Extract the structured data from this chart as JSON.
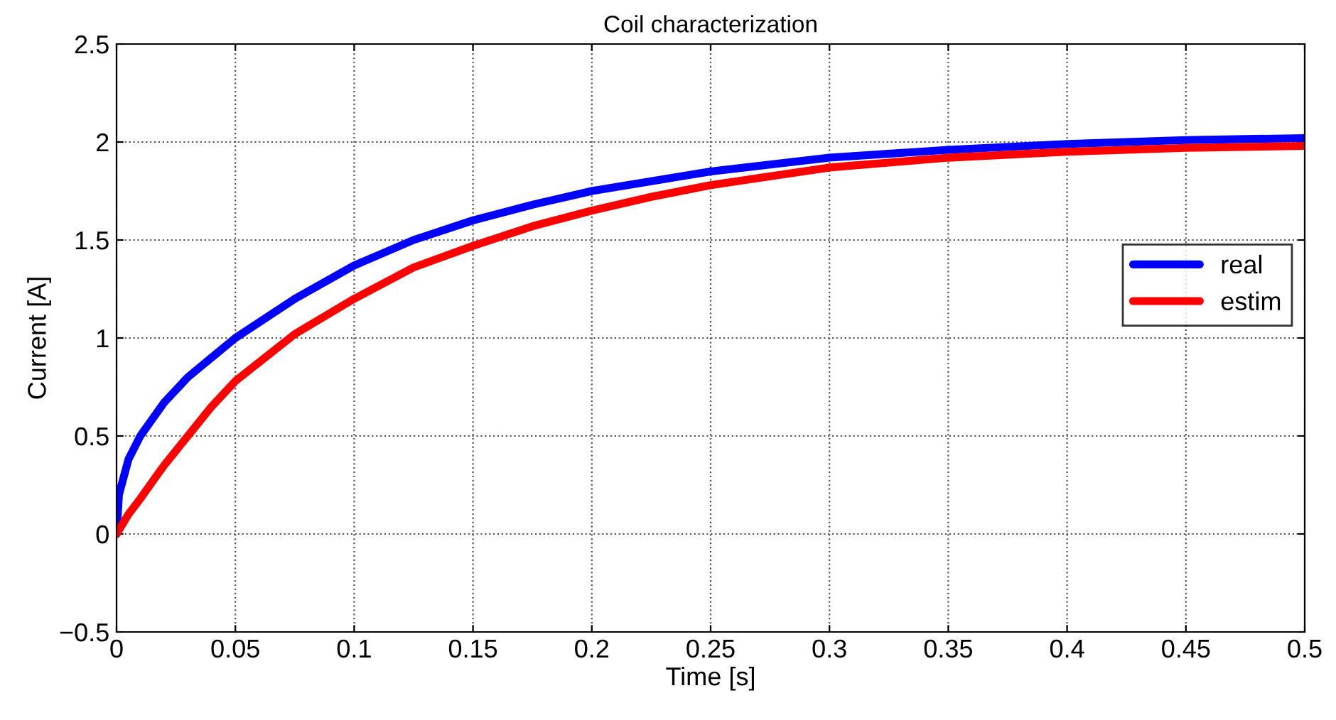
{
  "chart_data": {
    "type": "line",
    "title": "Coil characterization",
    "xlabel": "Time [s]",
    "ylabel": "Current [A]",
    "xlim": [
      0,
      0.5
    ],
    "ylim": [
      -0.5,
      2.5
    ],
    "xticks": [
      0,
      0.05,
      0.1,
      0.15,
      0.2,
      0.25,
      0.3,
      0.35,
      0.4,
      0.45,
      0.5
    ],
    "yticks": [
      {
        "value": -0.5,
        "label": "−0.5"
      },
      0,
      0.5,
      1,
      1.5,
      2,
      2.5
    ],
    "grid": true,
    "legend": "right",
    "line_style": "solid",
    "marker": "none",
    "series": [
      {
        "name": "real",
        "color": "#0000ff",
        "x": [
          0,
          0.001,
          0.005,
          0.01,
          0.02,
          0.03,
          0.04,
          0.05,
          0.075,
          0.1,
          0.125,
          0.15,
          0.175,
          0.2,
          0.225,
          0.25,
          0.3,
          0.35,
          0.4,
          0.45,
          0.5
        ],
        "values": [
          0,
          0.2,
          0.38,
          0.5,
          0.67,
          0.8,
          0.9,
          1.0,
          1.2,
          1.37,
          1.5,
          1.6,
          1.68,
          1.75,
          1.8,
          1.85,
          1.92,
          1.96,
          1.99,
          2.01,
          2.02
        ]
      },
      {
        "name": "estim",
        "color": "#ff0000",
        "x": [
          0,
          0.005,
          0.01,
          0.02,
          0.03,
          0.04,
          0.05,
          0.075,
          0.1,
          0.125,
          0.15,
          0.175,
          0.2,
          0.225,
          0.25,
          0.3,
          0.35,
          0.4,
          0.45,
          0.5
        ],
        "values": [
          0,
          0.1,
          0.18,
          0.35,
          0.5,
          0.65,
          0.78,
          1.02,
          1.2,
          1.36,
          1.47,
          1.57,
          1.65,
          1.72,
          1.78,
          1.87,
          1.92,
          1.95,
          1.97,
          1.98
        ]
      }
    ]
  }
}
